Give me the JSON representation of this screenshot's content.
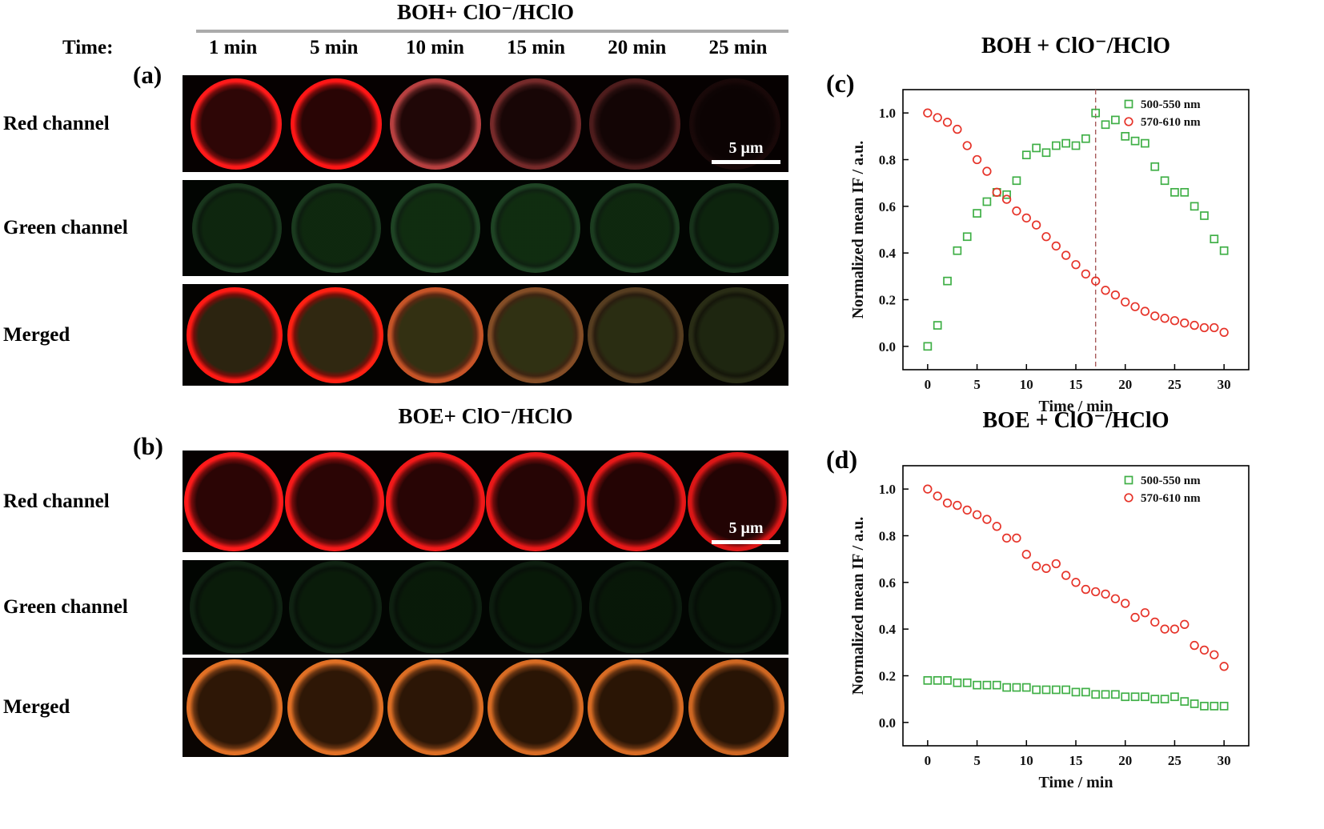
{
  "panel_a": {
    "letter": "(a)",
    "title": "BOH+ ClO⁻/HClO",
    "time_heading": "Time:",
    "times": [
      "1 min",
      "5 min",
      "10 min",
      "15 min",
      "20 min",
      "25 min"
    ],
    "rows": [
      {
        "name": "red",
        "label": "Red channel",
        "scalebar": "5 μm",
        "bg": "#060101",
        "diameter": 114,
        "cells": [
          {
            "ring": {
              "color": "#ff1a1a",
              "alpha": 1.0
            },
            "inner": {
              "color": "#2e0606",
              "alpha": 1
            }
          },
          {
            "ring": {
              "color": "#ff1616",
              "alpha": 1.0
            },
            "inner": {
              "color": "#290505",
              "alpha": 1
            }
          },
          {
            "ring": {
              "color": "#f25555",
              "alpha": 0.75
            },
            "inner": {
              "color": "#200707",
              "alpha": 1
            }
          },
          {
            "ring": {
              "color": "#d14b4b",
              "alpha": 0.55
            },
            "inner": {
              "color": "#180606",
              "alpha": 1
            }
          },
          {
            "ring": {
              "color": "#b84444",
              "alpha": 0.4
            },
            "inner": {
              "color": "#130505",
              "alpha": 1
            }
          },
          {
            "ring": {
              "color": "#7a3030",
              "alpha": 0.16
            },
            "inner": {
              "color": "#0c0303",
              "alpha": 1
            }
          }
        ]
      },
      {
        "name": "green",
        "label": "Green channel",
        "bg": "#020502",
        "diameter": 112,
        "cells": [
          {
            "ring": {
              "color": "#4da85a",
              "alpha": 0.3
            },
            "inner": {
              "color": "#0f2a10",
              "alpha": 0.9
            }
          },
          {
            "ring": {
              "color": "#4da85a",
              "alpha": 0.32
            },
            "inner": {
              "color": "#102c10",
              "alpha": 0.9
            }
          },
          {
            "ring": {
              "color": "#4da85a",
              "alpha": 0.38
            },
            "inner": {
              "color": "#123112",
              "alpha": 0.9
            }
          },
          {
            "ring": {
              "color": "#4da85a",
              "alpha": 0.38
            },
            "inner": {
              "color": "#123112",
              "alpha": 0.9
            }
          },
          {
            "ring": {
              "color": "#4da85a",
              "alpha": 0.34
            },
            "inner": {
              "color": "#102c10",
              "alpha": 0.9
            }
          },
          {
            "ring": {
              "color": "#4da85a",
              "alpha": 0.28
            },
            "inner": {
              "color": "#0e270e",
              "alpha": 0.9
            }
          }
        ]
      },
      {
        "name": "merged",
        "label": "Merged",
        "bg": "#040301",
        "diameter": 120,
        "cells": [
          {
            "ring": {
              "color": "#ff1a14",
              "alpha": 1.0
            },
            "inner": {
              "color": "#2c2410",
              "alpha": 1
            }
          },
          {
            "ring": {
              "color": "#ff2012",
              "alpha": 1.0
            },
            "inner": {
              "color": "#302811",
              "alpha": 1
            }
          },
          {
            "ring": {
              "color": "#e8622e",
              "alpha": 0.85
            },
            "inner": {
              "color": "#333012",
              "alpha": 1
            }
          },
          {
            "ring": {
              "color": "#c9753a",
              "alpha": 0.65
            },
            "inner": {
              "color": "#303113",
              "alpha": 1
            }
          },
          {
            "ring": {
              "color": "#a8763f",
              "alpha": 0.5
            },
            "inner": {
              "color": "#2a2d12",
              "alpha": 1
            }
          },
          {
            "ring": {
              "color": "#6e7a3a",
              "alpha": 0.35
            },
            "inner": {
              "color": "#1e2610",
              "alpha": 1
            }
          }
        ]
      }
    ]
  },
  "panel_b": {
    "letter": "(b)",
    "title": "BOE+ ClO⁻/HClO",
    "rows": [
      {
        "name": "red",
        "label": "Red channel",
        "scalebar": "5 μm",
        "bg": "#060101",
        "diameter": 124,
        "cells": [
          {
            "ring": {
              "color": "#ff1a1a",
              "alpha": 1.0
            },
            "inner": {
              "color": "#2b0505",
              "alpha": 1
            }
          },
          {
            "ring": {
              "color": "#ff1a1a",
              "alpha": 0.97
            },
            "inner": {
              "color": "#2b0505",
              "alpha": 1
            }
          },
          {
            "ring": {
              "color": "#ff1a1a",
              "alpha": 0.95
            },
            "inner": {
              "color": "#280505",
              "alpha": 1
            }
          },
          {
            "ring": {
              "color": "#ff1a1a",
              "alpha": 0.92
            },
            "inner": {
              "color": "#260505",
              "alpha": 1
            }
          },
          {
            "ring": {
              "color": "#ff1a1a",
              "alpha": 0.9
            },
            "inner": {
              "color": "#240404",
              "alpha": 1
            }
          },
          {
            "ring": {
              "color": "#ff1a1a",
              "alpha": 0.86
            },
            "inner": {
              "color": "#220404",
              "alpha": 1
            }
          }
        ]
      },
      {
        "name": "green",
        "label": "Green channel",
        "bg": "#020502",
        "diameter": 116,
        "cells": [
          {
            "ring": {
              "color": "#3f8a4a",
              "alpha": 0.22
            },
            "inner": {
              "color": "#0c220c",
              "alpha": 0.8
            }
          },
          {
            "ring": {
              "color": "#3f8a4a",
              "alpha": 0.22
            },
            "inner": {
              "color": "#0c220c",
              "alpha": 0.8
            }
          },
          {
            "ring": {
              "color": "#3f8a4a",
              "alpha": 0.2
            },
            "inner": {
              "color": "#0b200b",
              "alpha": 0.8
            }
          },
          {
            "ring": {
              "color": "#3f8a4a",
              "alpha": 0.18
            },
            "inner": {
              "color": "#0a1e0a",
              "alpha": 0.8
            }
          },
          {
            "ring": {
              "color": "#3f8a4a",
              "alpha": 0.17
            },
            "inner": {
              "color": "#0a1c0a",
              "alpha": 0.8
            }
          },
          {
            "ring": {
              "color": "#3f8a4a",
              "alpha": 0.15
            },
            "inner": {
              "color": "#091a09",
              "alpha": 0.8
            }
          }
        ]
      },
      {
        "name": "merged",
        "label": "Merged",
        "bg": "#0a0502",
        "diameter": 120,
        "cells": [
          {
            "ring": {
              "color": "#ff7f2a",
              "alpha": 0.88
            },
            "inner": {
              "color": "#2e1706",
              "alpha": 1
            }
          },
          {
            "ring": {
              "color": "#ff7f2a",
              "alpha": 0.88
            },
            "inner": {
              "color": "#2e1706",
              "alpha": 1
            }
          },
          {
            "ring": {
              "color": "#ff7f2a",
              "alpha": 0.86
            },
            "inner": {
              "color": "#2c1606",
              "alpha": 1
            }
          },
          {
            "ring": {
              "color": "#ff7f2a",
              "alpha": 0.84
            },
            "inner": {
              "color": "#2a1505",
              "alpha": 1
            }
          },
          {
            "ring": {
              "color": "#ff7f2a",
              "alpha": 0.84
            },
            "inner": {
              "color": "#2a1505",
              "alpha": 1
            }
          },
          {
            "ring": {
              "color": "#ff7f2a",
              "alpha": 0.8
            },
            "inner": {
              "color": "#281405",
              "alpha": 1
            }
          }
        ]
      }
    ]
  },
  "chart_data": [
    {
      "type": "scatter",
      "panel_label": "(c)",
      "title": "BOH + ClO⁻/HClO",
      "xlabel": "Time / min",
      "ylabel": "Normalized mean IF / a.u.",
      "xlim": [
        -2.5,
        32.5
      ],
      "ylim": [
        -0.1,
        1.1
      ],
      "xticks": [
        0,
        5,
        10,
        15,
        20,
        25,
        30
      ],
      "yticks": [
        0.0,
        0.2,
        0.4,
        0.6,
        0.8,
        1.0
      ],
      "grid": false,
      "legend_position": "top-right",
      "x": [
        0,
        1,
        2,
        3,
        4,
        5,
        6,
        7,
        8,
        9,
        10,
        11,
        12,
        13,
        14,
        15,
        16,
        17,
        18,
        19,
        20,
        21,
        22,
        23,
        24,
        25,
        26,
        27,
        28,
        29,
        30
      ],
      "series": [
        {
          "name": "500-550 nm",
          "marker": "square",
          "color": "#3faf46",
          "values": [
            0.0,
            0.09,
            0.28,
            0.41,
            0.47,
            0.57,
            0.62,
            0.66,
            0.65,
            0.71,
            0.82,
            0.85,
            0.83,
            0.86,
            0.87,
            0.86,
            0.89,
            1.0,
            0.95,
            0.97,
            0.9,
            0.88,
            0.87,
            0.77,
            0.71,
            0.66,
            0.66,
            0.6,
            0.56,
            0.46,
            0.41
          ]
        },
        {
          "name": "570-610 nm",
          "marker": "circle",
          "color": "#e63329",
          "values": [
            1.0,
            0.98,
            0.96,
            0.93,
            0.86,
            0.8,
            0.75,
            0.66,
            0.63,
            0.58,
            0.55,
            0.52,
            0.47,
            0.43,
            0.39,
            0.35,
            0.31,
            0.28,
            0.24,
            0.22,
            0.19,
            0.17,
            0.15,
            0.13,
            0.12,
            0.11,
            0.1,
            0.09,
            0.08,
            0.08,
            0.06
          ]
        }
      ],
      "vline": {
        "x": 17,
        "color": "#a85b5b",
        "style": "dashed"
      }
    },
    {
      "type": "scatter",
      "panel_label": "(d)",
      "title": "BOE + ClO⁻/HClO",
      "xlabel": "Time / min",
      "ylabel": "Normalized mean IF / a.u.",
      "xlim": [
        -2.5,
        32.5
      ],
      "ylim": [
        -0.1,
        1.1
      ],
      "xticks": [
        0,
        5,
        10,
        15,
        20,
        25,
        30
      ],
      "yticks": [
        0.0,
        0.2,
        0.4,
        0.6,
        0.8,
        1.0
      ],
      "grid": false,
      "legend_position": "top-right",
      "x": [
        0,
        1,
        2,
        3,
        4,
        5,
        6,
        7,
        8,
        9,
        10,
        11,
        12,
        13,
        14,
        15,
        16,
        17,
        18,
        19,
        20,
        21,
        22,
        23,
        24,
        25,
        26,
        27,
        28,
        29,
        30
      ],
      "series": [
        {
          "name": "500-550 nm",
          "marker": "square",
          "color": "#3faf46",
          "values": [
            0.18,
            0.18,
            0.18,
            0.17,
            0.17,
            0.16,
            0.16,
            0.16,
            0.15,
            0.15,
            0.15,
            0.14,
            0.14,
            0.14,
            0.14,
            0.13,
            0.13,
            0.12,
            0.12,
            0.12,
            0.11,
            0.11,
            0.11,
            0.1,
            0.1,
            0.11,
            0.09,
            0.08,
            0.07,
            0.07,
            0.07
          ]
        },
        {
          "name": "570-610 nm",
          "marker": "circle",
          "color": "#e63329",
          "values": [
            1.0,
            0.97,
            0.94,
            0.93,
            0.91,
            0.89,
            0.87,
            0.84,
            0.79,
            0.79,
            0.72,
            0.67,
            0.66,
            0.68,
            0.63,
            0.6,
            0.57,
            0.56,
            0.55,
            0.53,
            0.51,
            0.45,
            0.47,
            0.43,
            0.4,
            0.4,
            0.42,
            0.33,
            0.31,
            0.29,
            0.24
          ]
        }
      ]
    }
  ]
}
